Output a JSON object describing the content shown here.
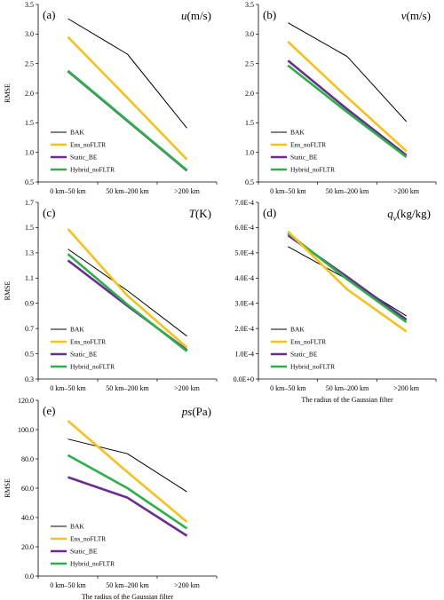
{
  "legend": [
    "BAK",
    "Ens_noFLTR",
    "Static_BE",
    "Hybrid_noFLTR"
  ],
  "colors": {
    "BAK": "#000000",
    "Ens_noFLTR": "#f5c21b",
    "Static_BE": "#6a2c91",
    "Hybrid_noFLTR": "#2bb04a"
  },
  "chart_data": [
    {
      "type": "line",
      "panel": "(a)",
      "title_var": "u",
      "title_unit": "(m/s)",
      "ylabel": "RMSE",
      "xlabel": "",
      "categories": [
        "0 km–50 km",
        "50 km–200 km",
        ">200 km"
      ],
      "ylim": [
        0.5,
        3.5
      ],
      "yticks": [
        0.5,
        1.0,
        1.5,
        2.0,
        2.5,
        3.0,
        3.5
      ],
      "ytick_labels": [
        "0.5",
        "1.0",
        "1.5",
        "2.0",
        "2.5",
        "3.0",
        "3.5"
      ],
      "series": [
        {
          "name": "BAK",
          "values": [
            3.26,
            2.66,
            1.41
          ]
        },
        {
          "name": "Ens_noFLTR",
          "values": [
            2.95,
            1.92,
            0.88
          ]
        },
        {
          "name": "Static_BE",
          "values": [
            2.37,
            1.53,
            0.69
          ]
        },
        {
          "name": "Hybrid_noFLTR",
          "values": [
            2.38,
            1.54,
            0.7
          ]
        }
      ]
    },
    {
      "type": "line",
      "panel": "(b)",
      "title_var": "v",
      "title_unit": "(m/s)",
      "ylabel": "",
      "xlabel": "",
      "categories": [
        "0 km–50 km",
        "50 km–200 km",
        ">200 km"
      ],
      "ylim": [
        0.5,
        3.5
      ],
      "yticks": [
        0.5,
        1.0,
        1.5,
        2.0,
        2.5,
        3.0,
        3.5
      ],
      "ytick_labels": [
        "0.5",
        "1.0",
        "1.5",
        "2.0",
        "2.5",
        "3.0",
        "3.5"
      ],
      "series": [
        {
          "name": "BAK",
          "values": [
            3.19,
            2.62,
            1.52
          ]
        },
        {
          "name": "Ens_noFLTR",
          "values": [
            2.87,
            1.93,
            1.02
          ]
        },
        {
          "name": "Static_BE",
          "values": [
            2.55,
            1.73,
            0.95
          ]
        },
        {
          "name": "Hybrid_noFLTR",
          "values": [
            2.47,
            1.68,
            0.92
          ]
        }
      ]
    },
    {
      "type": "line",
      "panel": "(c)",
      "title_var": "T",
      "title_unit": "(K)",
      "ylabel": "RMSE",
      "xlabel": "",
      "categories": [
        "0 km–50 km",
        "50 km–200 km",
        ">200 km"
      ],
      "ylim": [
        0.3,
        1.7
      ],
      "yticks": [
        0.3,
        0.5,
        0.7,
        0.9,
        1.1,
        1.3,
        1.5,
        1.7
      ],
      "ytick_labels": [
        "0.3",
        "0.5",
        "0.7",
        "0.9",
        "1.1",
        "1.3",
        "1.5",
        "1.7"
      ],
      "series": [
        {
          "name": "BAK",
          "values": [
            1.33,
            1.0,
            0.64
          ]
        },
        {
          "name": "Ens_noFLTR",
          "values": [
            1.49,
            0.96,
            0.55
          ]
        },
        {
          "name": "Static_BE",
          "values": [
            1.24,
            0.88,
            0.53
          ]
        },
        {
          "name": "Hybrid_noFLTR",
          "values": [
            1.29,
            0.89,
            0.52
          ]
        }
      ]
    },
    {
      "type": "line",
      "panel": "(d)",
      "title_var": "q",
      "title_sub": "v",
      "title_unit": "(kg/kg)",
      "ylabel": "",
      "xlabel": "The radius of the Gaussian filter",
      "categories": [
        "0 km–50 km",
        "50 km–200 km",
        ">200 km"
      ],
      "ylim": [
        0,
        0.0007
      ],
      "yticks": [
        0,
        0.0001,
        0.0002,
        0.0003,
        0.0004,
        0.0005,
        0.0006,
        0.0007
      ],
      "ytick_labels": [
        "0.0E+0",
        "1.0E-4",
        "2.0E-4",
        "3.0E-4",
        "4.0E-4",
        "5.0E-4",
        "6.0E-4",
        "7.0E-4"
      ],
      "series": [
        {
          "name": "BAK",
          "values": [
            0.000525,
            0.000395,
            0.00025
          ]
        },
        {
          "name": "Ens_noFLTR",
          "values": [
            0.000585,
            0.000355,
            0.000188
          ]
        },
        {
          "name": "Static_BE",
          "values": [
            0.00057,
            0.000405,
            0.000235
          ]
        },
        {
          "name": "Hybrid_noFLTR",
          "values": [
            0.000578,
            0.000395,
            0.000225
          ]
        }
      ]
    },
    {
      "type": "line",
      "panel": "(e)",
      "title_var": "ps",
      "title_unit": "(Pa)",
      "ylabel": "RMSE",
      "xlabel": "The radius of the Gaussian filter",
      "categories": [
        "0 km–50 km",
        "50 km–200 km",
        ">200 km"
      ],
      "ylim": [
        0,
        120
      ],
      "yticks": [
        0,
        20,
        40,
        60,
        80,
        100,
        120
      ],
      "ytick_labels": [
        "0.0",
        "20.0",
        "40.0",
        "60.0",
        "80.0",
        "100.0",
        "120.0"
      ],
      "series": [
        {
          "name": "BAK",
          "values": [
            93.5,
            83.5,
            57.5
          ]
        },
        {
          "name": "Ens_noFLTR",
          "values": [
            106.0,
            71.0,
            37.0
          ]
        },
        {
          "name": "Static_BE",
          "values": [
            67.5,
            53.5,
            27.5
          ]
        },
        {
          "name": "Hybrid_noFLTR",
          "values": [
            82.5,
            60.0,
            32.5
          ]
        }
      ]
    }
  ]
}
